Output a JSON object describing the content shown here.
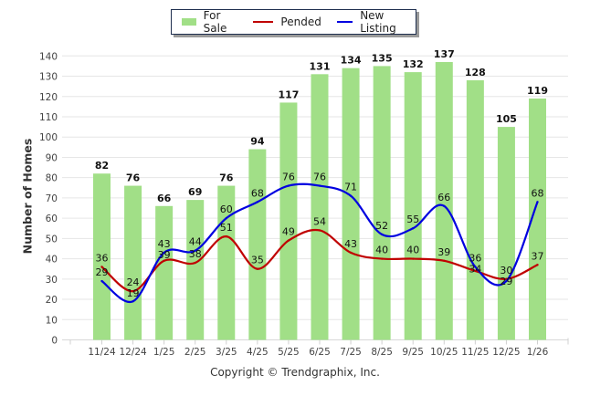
{
  "legend": {
    "items": [
      {
        "label": "For Sale",
        "kind": "bar",
        "color": "#a1df87"
      },
      {
        "label": "Pended",
        "kind": "line",
        "color": "#c00000"
      },
      {
        "label": "New Listing",
        "kind": "line",
        "color": "#0000e0"
      }
    ]
  },
  "footer": {
    "copyright": "Copyright © Trendgraphix, Inc."
  },
  "chart_data": {
    "type": "bar",
    "title": "",
    "xlabel": "",
    "ylabel": "Number of Homes",
    "ylim": [
      0,
      140
    ],
    "yticks": [
      0,
      10,
      20,
      30,
      40,
      50,
      60,
      70,
      80,
      90,
      100,
      110,
      120,
      130,
      140
    ],
    "grid": true,
    "legend_position": "top-center",
    "categories": [
      "11/24",
      "12/24",
      "1/25",
      "2/25",
      "3/25",
      "4/25",
      "5/25",
      "6/25",
      "7/25",
      "8/25",
      "9/25",
      "10/25",
      "11/25",
      "12/25",
      "1/26"
    ],
    "series": [
      {
        "name": "For Sale",
        "type": "bar",
        "color": "#a1df87",
        "values": [
          82,
          76,
          66,
          69,
          76,
          94,
          117,
          131,
          134,
          135,
          132,
          137,
          128,
          105,
          119
        ]
      },
      {
        "name": "Pended",
        "type": "line",
        "color": "#c00000",
        "values": [
          36,
          24,
          39,
          38,
          51,
          35,
          49,
          54,
          43,
          40,
          40,
          39,
          34,
          30,
          37
        ]
      },
      {
        "name": "New Listing",
        "type": "line",
        "color": "#0000e0",
        "values": [
          29,
          19,
          43,
          44,
          60,
          68,
          76,
          76,
          71,
          52,
          55,
          66,
          36,
          29,
          68
        ]
      }
    ]
  }
}
